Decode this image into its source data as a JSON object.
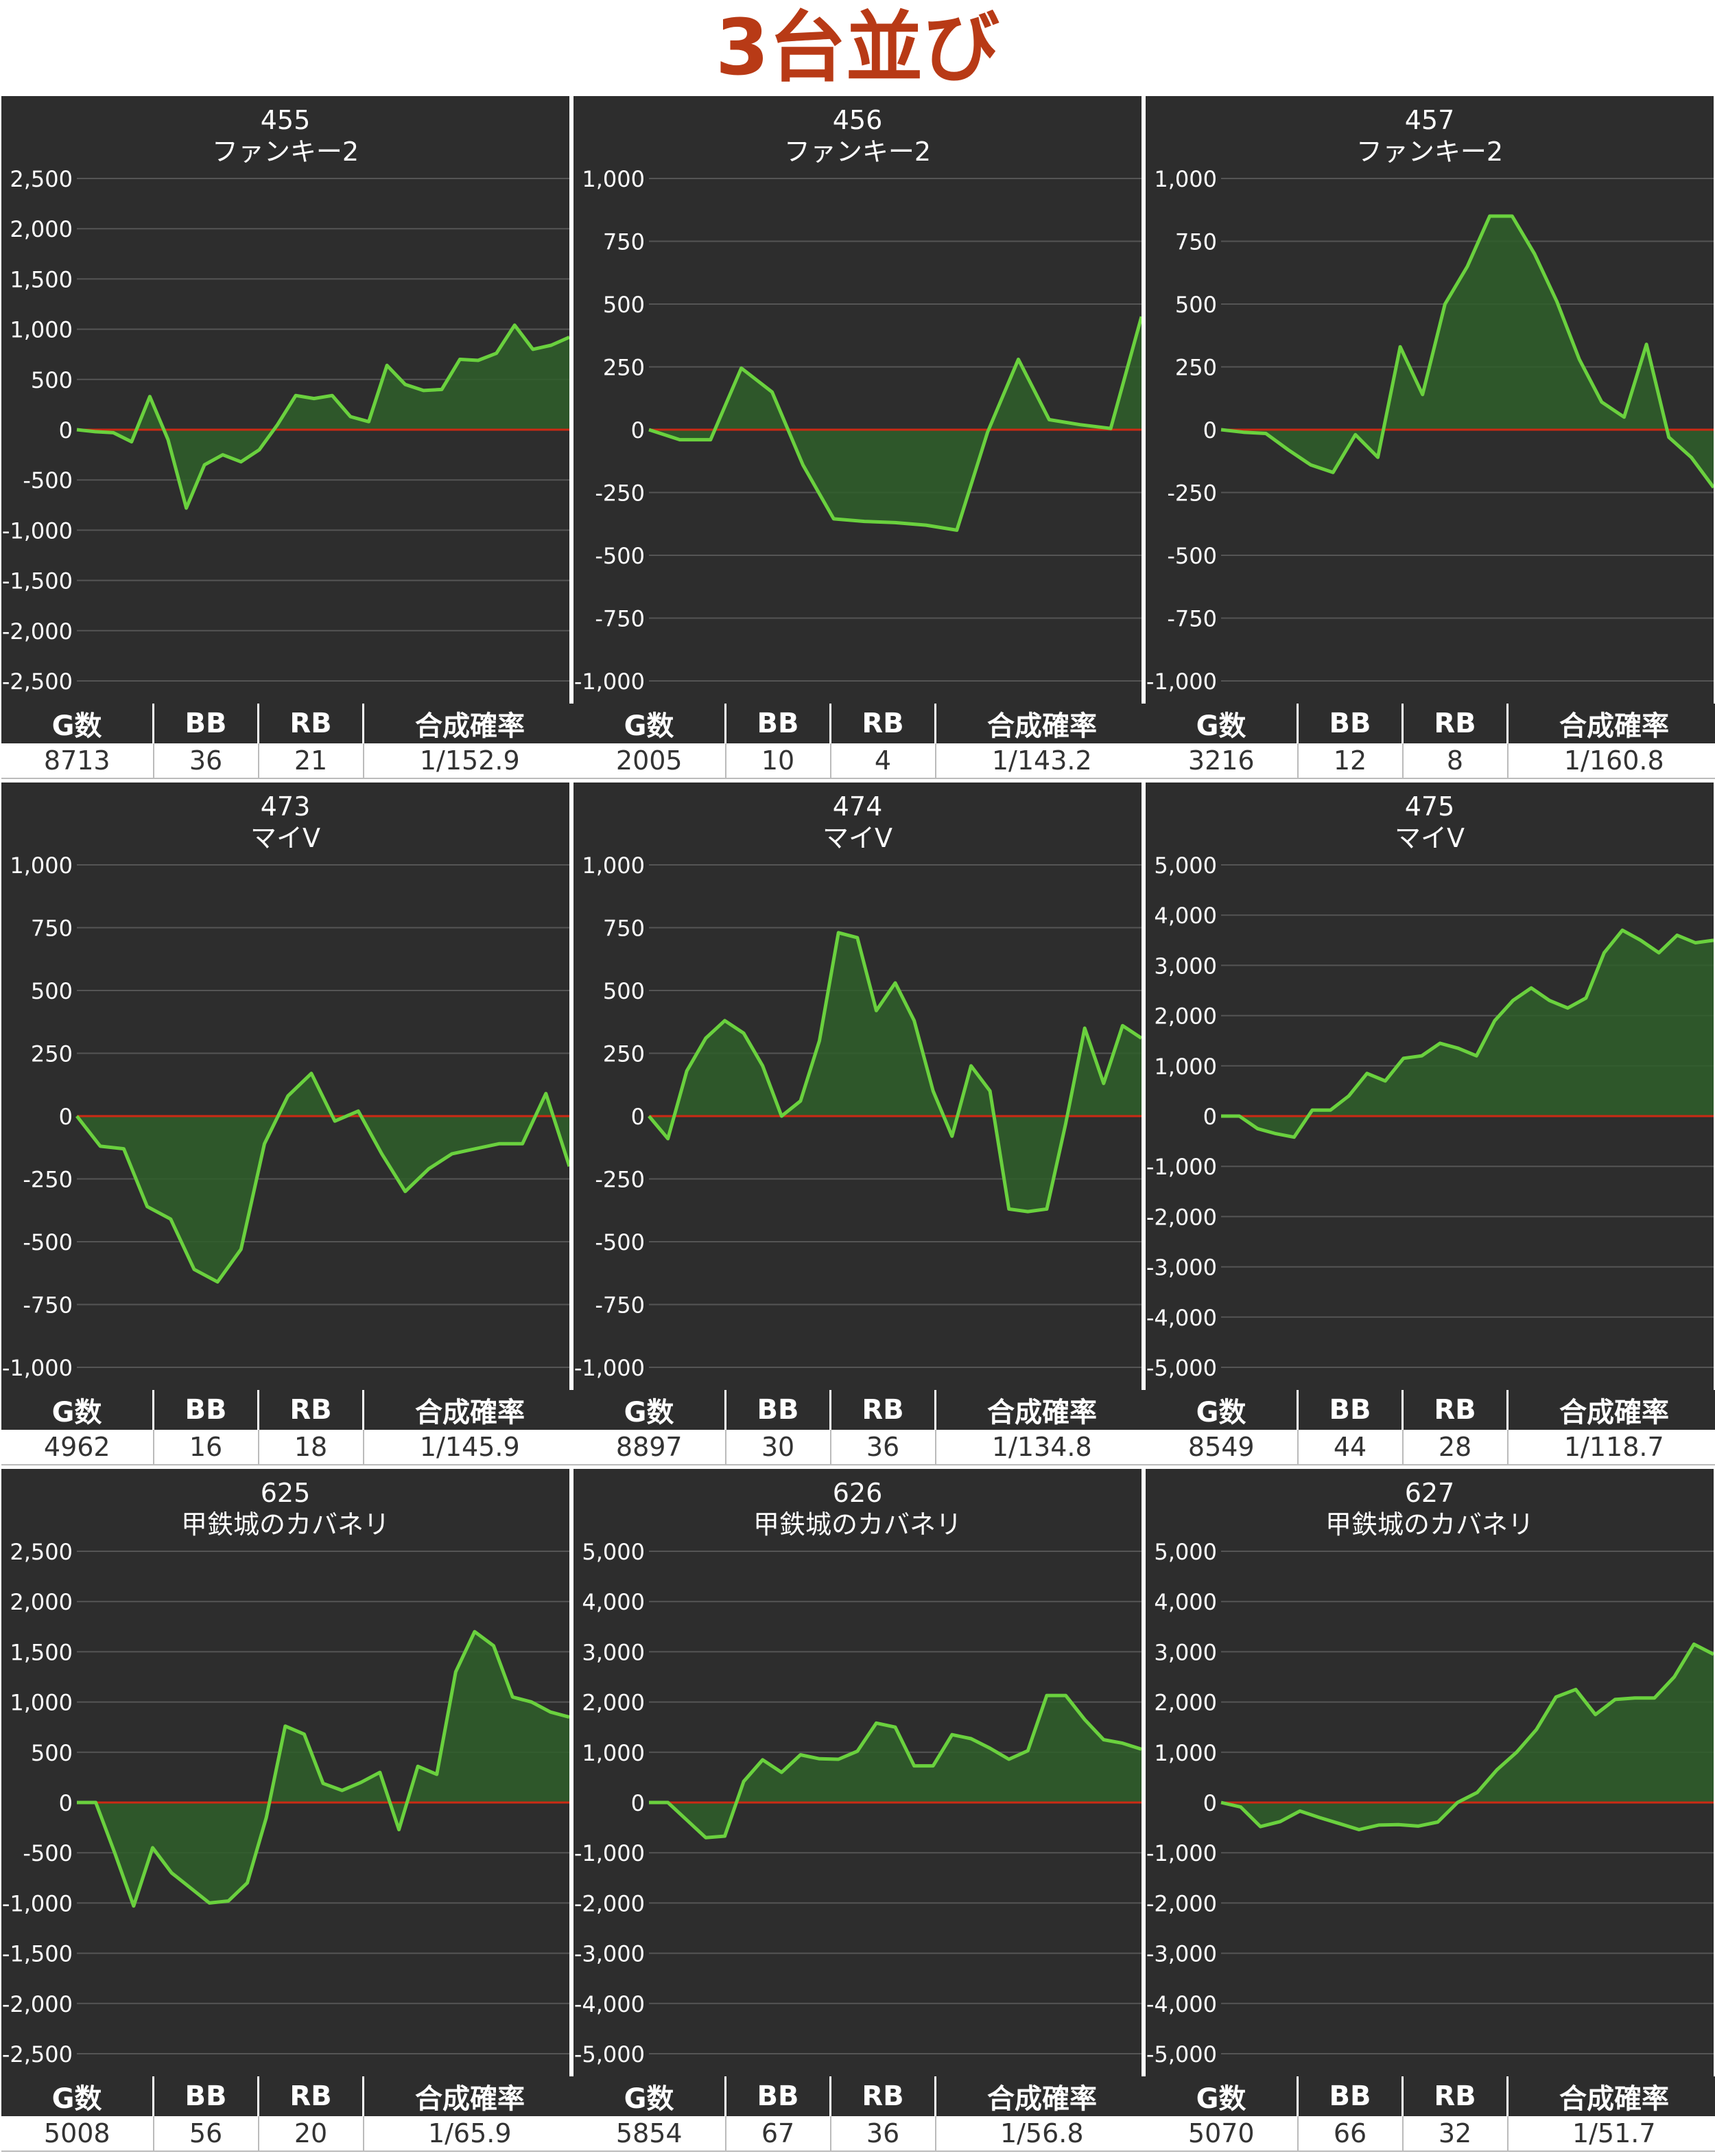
{
  "page": {
    "title": "3台並び"
  },
  "colors": {
    "line": "#6ad13e",
    "fill": "#2f5f2a",
    "zero_line": "#cc2a14",
    "grid": "#555555",
    "panel_bg": "#2d2d2d",
    "title": "#b83a16"
  },
  "table_headers": [
    "G数",
    "BB",
    "RB",
    "合成確率"
  ],
  "panels": [
    {
      "machine_no": "455",
      "machine_name": "ファンキー2",
      "stats": {
        "games": "8713",
        "bb": "36",
        "rb": "21",
        "rate": "1/152.9"
      },
      "chart_data": {
        "type": "area",
        "ylim": [
          -2500,
          2500
        ],
        "ticks": [
          2500,
          2000,
          1500,
          1000,
          500,
          0,
          -500,
          -1000,
          -1500,
          -2000,
          -2500
        ],
        "tick_labels": [
          "2,500",
          "2,000",
          "1,500",
          "1,000",
          "500",
          "0",
          "-500",
          "-1,000",
          "-1,500",
          "-2,000",
          "-2,500"
        ],
        "values": [
          0,
          -20,
          -30,
          -120,
          330,
          -100,
          -780,
          -350,
          -250,
          -320,
          -200,
          50,
          340,
          310,
          340,
          130,
          80,
          640,
          450,
          390,
          400,
          700,
          690,
          760,
          1040,
          800,
          840,
          920
        ]
      }
    },
    {
      "machine_no": "456",
      "machine_name": "ファンキー2",
      "stats": {
        "games": "2005",
        "bb": "10",
        "rb": "4",
        "rate": "1/143.2"
      },
      "chart_data": {
        "type": "area",
        "ylim": [
          -1000,
          1000
        ],
        "ticks": [
          1000,
          750,
          500,
          250,
          0,
          -250,
          -500,
          -750,
          -1000
        ],
        "tick_labels": [
          "1,000",
          "750",
          "500",
          "250",
          "0",
          "-250",
          "-500",
          "-750",
          "-1,000"
        ],
        "values": [
          0,
          -40,
          -40,
          245,
          150,
          -140,
          -355,
          -365,
          -370,
          -380,
          -400,
          -10,
          280,
          40,
          20,
          5,
          450
        ]
      }
    },
    {
      "machine_no": "457",
      "machine_name": "ファンキー2",
      "stats": {
        "games": "3216",
        "bb": "12",
        "rb": "8",
        "rate": "1/160.8"
      },
      "chart_data": {
        "type": "area",
        "ylim": [
          -1000,
          1000
        ],
        "ticks": [
          1000,
          750,
          500,
          250,
          0,
          -250,
          -500,
          -750,
          -1000
        ],
        "tick_labels": [
          "1,000",
          "750",
          "500",
          "250",
          "0",
          "-250",
          "-500",
          "-750",
          "-1,000"
        ],
        "values": [
          0,
          -10,
          -15,
          -80,
          -140,
          -170,
          -20,
          -110,
          330,
          140,
          500,
          650,
          850,
          850,
          700,
          510,
          280,
          110,
          50,
          340,
          -30,
          -110,
          -230
        ]
      }
    },
    {
      "machine_no": "473",
      "machine_name": "マイV",
      "stats": {
        "games": "4962",
        "bb": "16",
        "rb": "18",
        "rate": "1/145.9"
      },
      "chart_data": {
        "type": "area",
        "ylim": [
          -1000,
          1000
        ],
        "ticks": [
          1000,
          750,
          500,
          250,
          0,
          -250,
          -500,
          -750,
          -1000
        ],
        "tick_labels": [
          "1,000",
          "750",
          "500",
          "250",
          "0",
          "-250",
          "-500",
          "-750",
          "-1,000"
        ],
        "values": [
          0,
          -120,
          -130,
          -360,
          -410,
          -610,
          -660,
          -530,
          -110,
          80,
          170,
          -20,
          20,
          -150,
          -300,
          -210,
          -150,
          -130,
          -110,
          -110,
          90,
          -200
        ]
      }
    },
    {
      "machine_no": "474",
      "machine_name": "マイV",
      "stats": {
        "games": "8897",
        "bb": "30",
        "rb": "36",
        "rate": "1/134.8"
      },
      "chart_data": {
        "type": "area",
        "ylim": [
          -1000,
          1000
        ],
        "ticks": [
          1000,
          750,
          500,
          250,
          0,
          -250,
          -500,
          -750,
          -1000
        ],
        "tick_labels": [
          "1,000",
          "750",
          "500",
          "250",
          "0",
          "-250",
          "-500",
          "-750",
          "-1,000"
        ],
        "values": [
          0,
          -90,
          180,
          310,
          380,
          330,
          200,
          0,
          60,
          300,
          730,
          710,
          420,
          530,
          380,
          100,
          -80,
          200,
          100,
          -370,
          -380,
          -370,
          -30,
          350,
          130,
          360,
          310
        ]
      }
    },
    {
      "machine_no": "475",
      "machine_name": "マイV",
      "stats": {
        "games": "8549",
        "bb": "44",
        "rb": "28",
        "rate": "1/118.7"
      },
      "chart_data": {
        "type": "area",
        "ylim": [
          -5000,
          5000
        ],
        "ticks": [
          5000,
          4000,
          3000,
          2000,
          1000,
          0,
          -1000,
          -2000,
          -3000,
          -4000,
          -5000
        ],
        "tick_labels": [
          "5,000",
          "4,000",
          "3,000",
          "2,000",
          "1,000",
          "0",
          "-1,000",
          "-2,000",
          "-3,000",
          "-4,000",
          "-5,000"
        ],
        "values": [
          0,
          0,
          -250,
          -350,
          -420,
          120,
          120,
          400,
          850,
          700,
          1150,
          1200,
          1450,
          1350,
          1200,
          1900,
          2300,
          2550,
          2300,
          2150,
          2350,
          3250,
          3700,
          3500,
          3250,
          3600,
          3450,
          3500
        ]
      }
    },
    {
      "machine_no": "625",
      "machine_name": "甲鉄城のカバネリ",
      "stats": {
        "games": "5008",
        "bb": "56",
        "rb": "20",
        "rate": "1/65.9"
      },
      "chart_data": {
        "type": "area",
        "ylim": [
          -2500,
          2500
        ],
        "ticks": [
          2500,
          2000,
          1500,
          1000,
          500,
          0,
          -500,
          -1000,
          -1500,
          -2000,
          -2500
        ],
        "tick_labels": [
          "2,500",
          "2,000",
          "1,500",
          "1,000",
          "500",
          "0",
          "-500",
          "-1,000",
          "-1,500",
          "-2,000",
          "-2,500"
        ],
        "values": [
          0,
          0,
          -500,
          -1030,
          -450,
          -700,
          -850,
          -1000,
          -980,
          -800,
          -150,
          760,
          680,
          190,
          120,
          200,
          300,
          -270,
          360,
          280,
          1300,
          1700,
          1560,
          1050,
          1000,
          900,
          850
        ]
      }
    },
    {
      "machine_no": "626",
      "machine_name": "甲鉄城のカバネリ",
      "stats": {
        "games": "5854",
        "bb": "67",
        "rb": "36",
        "rate": "1/56.8"
      },
      "chart_data": {
        "type": "area",
        "ylim": [
          -5000,
          5000
        ],
        "ticks": [
          5000,
          4000,
          3000,
          2000,
          1000,
          0,
          -1000,
          -2000,
          -3000,
          -4000,
          -5000
        ],
        "tick_labels": [
          "5,000",
          "4,000",
          "3,000",
          "2,000",
          "1,000",
          "0",
          "-1,000",
          "-2,000",
          "-3,000",
          "-4,000",
          "-5,000"
        ],
        "values": [
          0,
          0,
          -350,
          -700,
          -670,
          420,
          850,
          600,
          950,
          870,
          860,
          1020,
          1580,
          1500,
          730,
          730,
          1350,
          1270,
          1080,
          860,
          1030,
          2130,
          2130,
          1650,
          1250,
          1180,
          1060
        ]
      }
    },
    {
      "machine_no": "627",
      "machine_name": "甲鉄城のカバネリ",
      "stats": {
        "games": "5070",
        "bb": "66",
        "rb": "32",
        "rate": "1/51.7"
      },
      "chart_data": {
        "type": "area",
        "ylim": [
          -5000,
          5000
        ],
        "ticks": [
          5000,
          4000,
          3000,
          2000,
          1000,
          0,
          -1000,
          -2000,
          -3000,
          -4000,
          -5000
        ],
        "tick_labels": [
          "5,000",
          "4,000",
          "3,000",
          "2,000",
          "1,000",
          "0",
          "-1,000",
          "-2,000",
          "-3,000",
          "-4,000",
          "-5,000"
        ],
        "values": [
          0,
          -90,
          -480,
          -380,
          -170,
          -300,
          -420,
          -540,
          -450,
          -440,
          -470,
          -390,
          0,
          200,
          650,
          1000,
          1450,
          2100,
          2250,
          1750,
          2050,
          2080,
          2080,
          2500,
          3150,
          2950
        ]
      }
    }
  ]
}
